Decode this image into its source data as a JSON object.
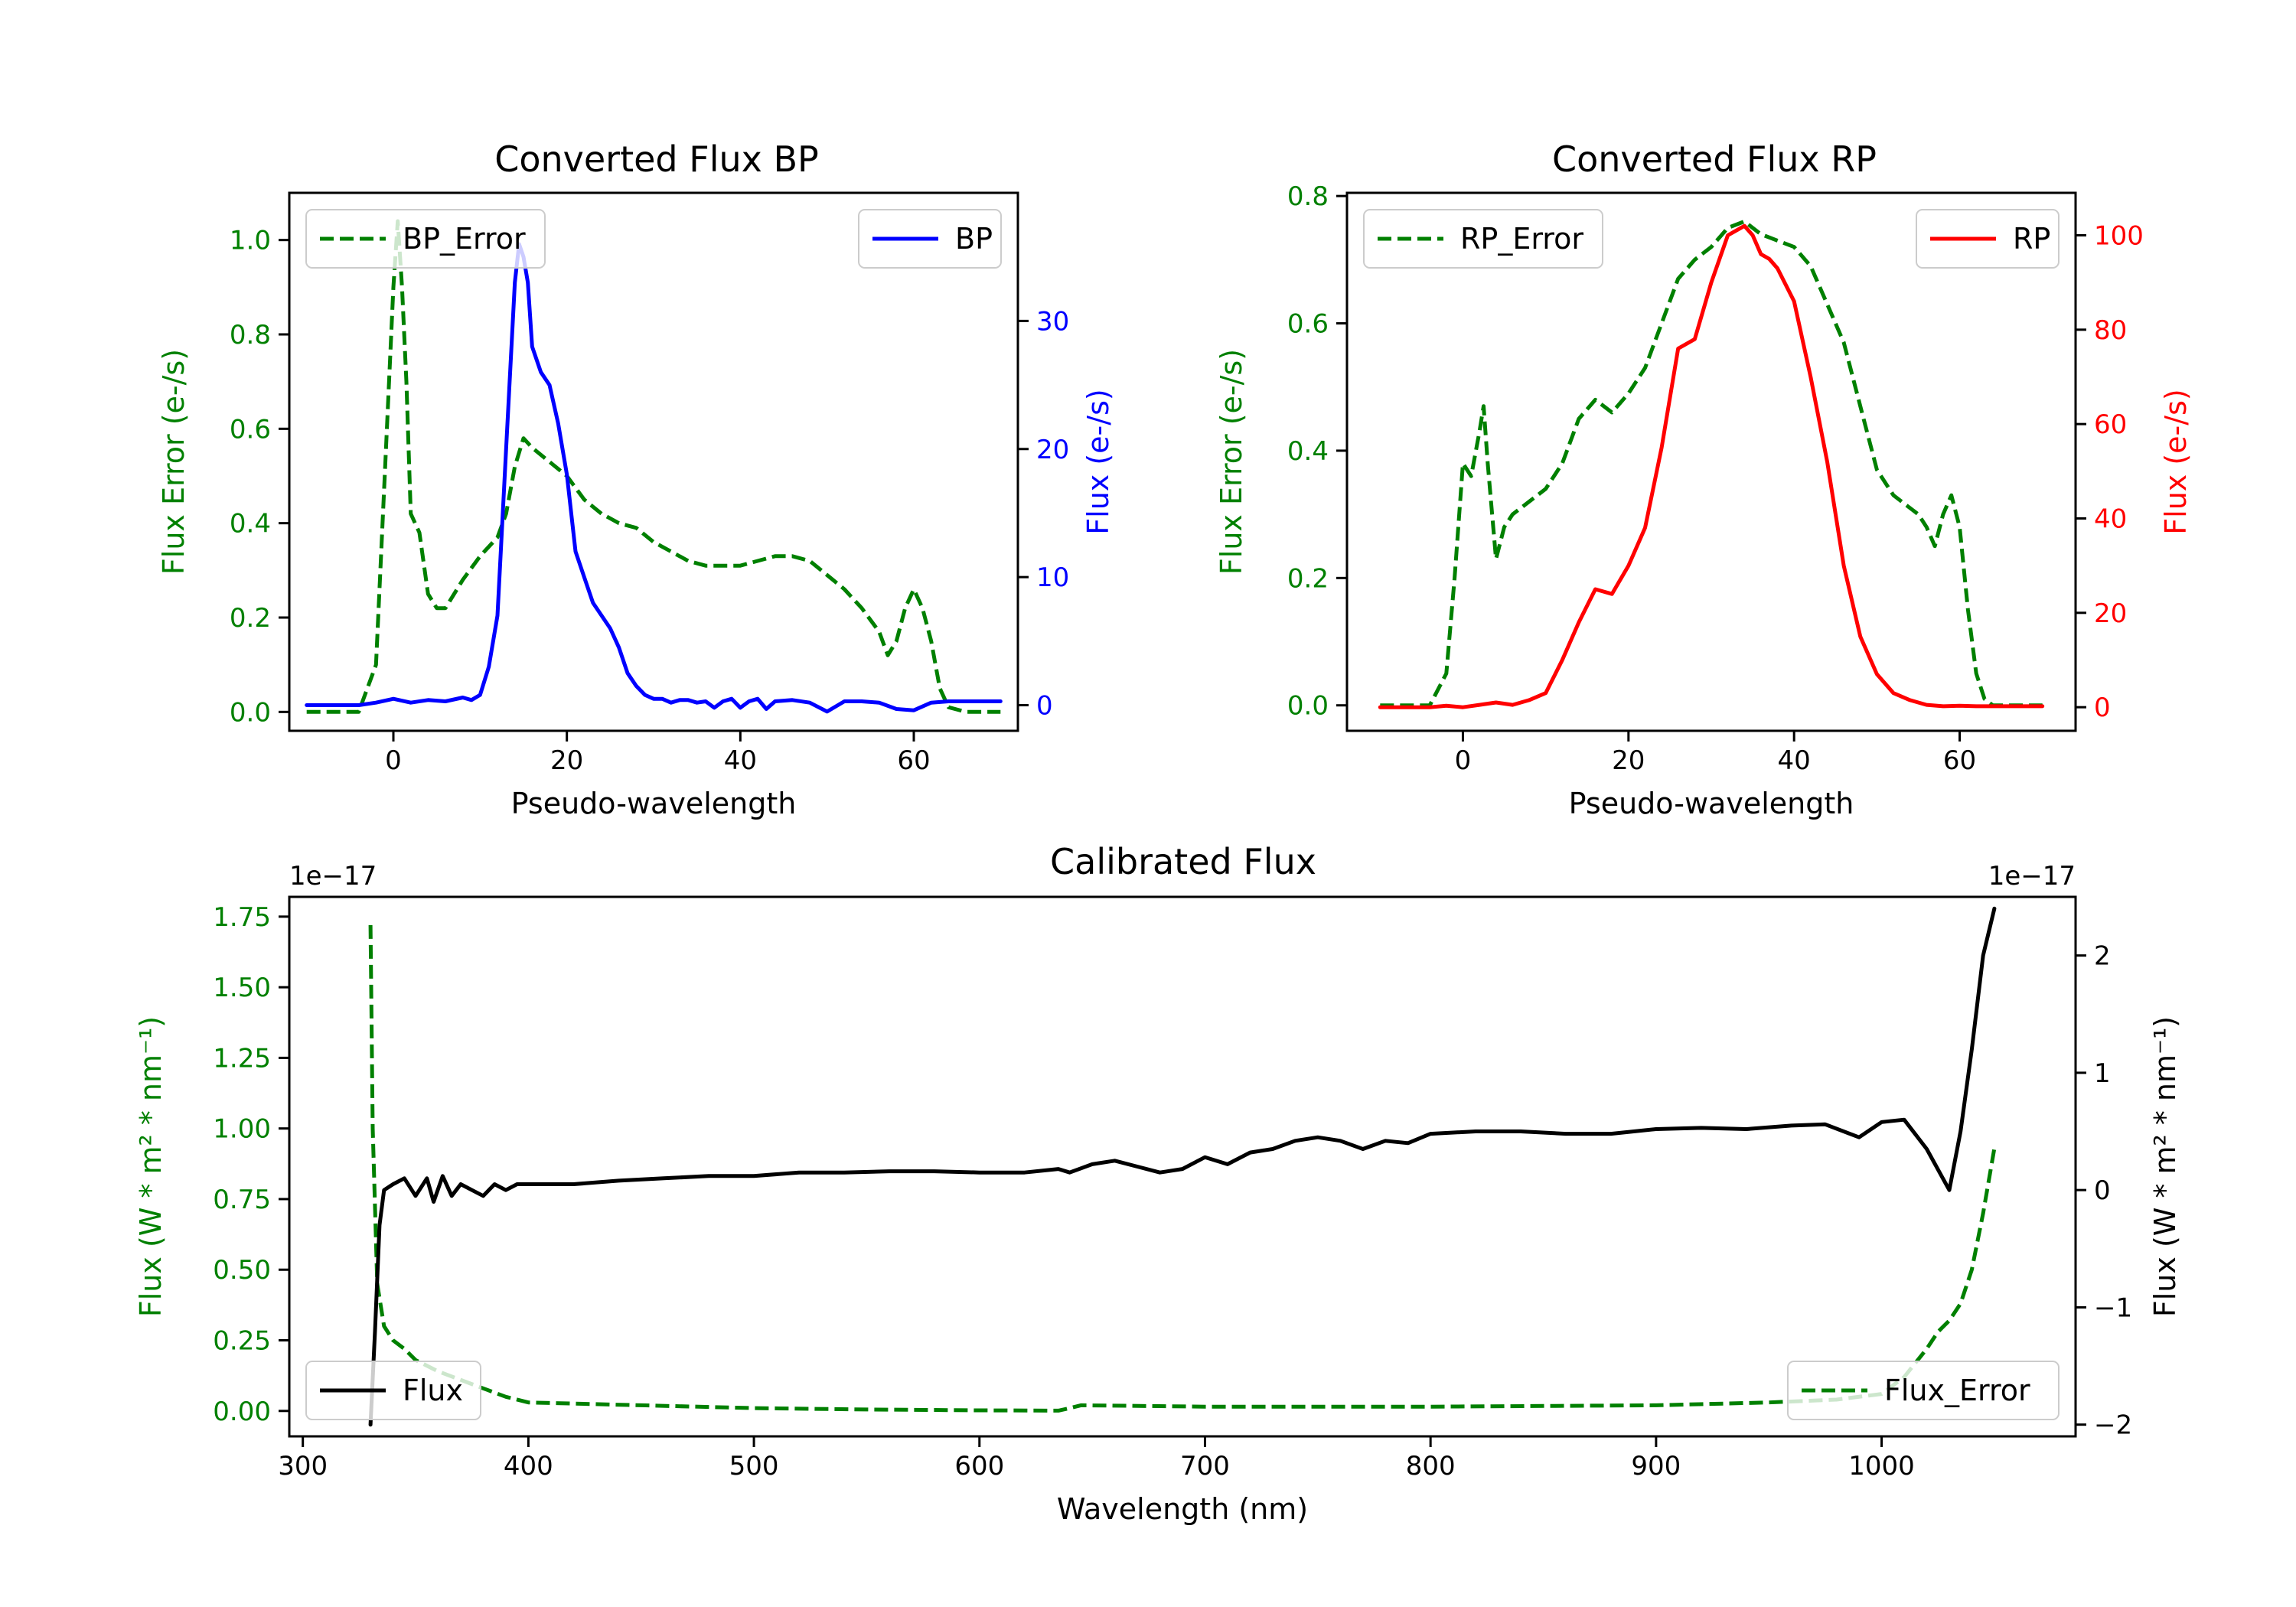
{
  "colors": {
    "error": "#008000",
    "bp": "#0000ff",
    "rp": "#ff0000",
    "flux": "#000000"
  },
  "chart_data": [
    {
      "id": "bp",
      "type": "line",
      "title": "Converted Flux BP",
      "xlabel": "Pseudo-wavelength",
      "ylabel_left": "Flux Error (e-/s)",
      "ylabel_right": "Flux (e-/s)",
      "xlim": [
        -12,
        72
      ],
      "ylim_left": [
        -0.04,
        1.1
      ],
      "ylim_right": [
        -2,
        40
      ],
      "xticks": [
        0,
        20,
        40,
        60
      ],
      "yticks_left": [
        0.0,
        0.2,
        0.4,
        0.6,
        0.8,
        1.0
      ],
      "yticks_right": [
        0,
        10,
        20,
        30
      ],
      "left_tick_labels": [
        "0.0",
        "0.2",
        "0.4",
        "0.6",
        "0.8",
        "1.0"
      ],
      "right_tick_labels": [
        "0",
        "10",
        "20",
        "30"
      ],
      "legend_left": "BP_Error",
      "legend_right": "BP",
      "series": [
        {
          "name": "BP_Error",
          "axis": "left",
          "style": "dashed",
          "color": "#008000",
          "x": [
            -10,
            -4,
            -2,
            -1,
            0,
            0.5,
            1,
            1.5,
            2,
            3,
            4,
            5,
            6,
            8,
            10,
            12,
            13,
            14,
            15,
            16,
            18,
            20,
            22,
            24,
            26,
            28,
            30,
            32,
            34,
            36,
            38,
            40,
            42,
            44,
            46,
            48,
            50,
            52,
            54,
            56,
            57,
            58,
            59,
            60,
            61,
            62,
            63,
            64,
            66,
            68,
            70
          ],
          "values": [
            0.0,
            0.0,
            0.1,
            0.5,
            0.9,
            1.04,
            0.9,
            0.7,
            0.42,
            0.38,
            0.25,
            0.22,
            0.22,
            0.28,
            0.33,
            0.37,
            0.42,
            0.52,
            0.58,
            0.56,
            0.53,
            0.5,
            0.45,
            0.42,
            0.4,
            0.39,
            0.36,
            0.34,
            0.32,
            0.31,
            0.31,
            0.31,
            0.32,
            0.33,
            0.33,
            0.32,
            0.29,
            0.26,
            0.22,
            0.17,
            0.12,
            0.15,
            0.22,
            0.26,
            0.22,
            0.15,
            0.05,
            0.01,
            0.0,
            0.0,
            0.0
          ]
        },
        {
          "name": "BP",
          "axis": "right",
          "style": "solid",
          "color": "#0000ff",
          "x": [
            -10,
            -4,
            -2,
            0,
            2,
            4,
            6,
            8,
            9,
            10,
            11,
            12,
            13,
            14,
            14.5,
            15,
            15.5,
            16,
            17,
            18,
            19,
            20,
            21,
            22,
            23,
            24,
            25,
            26,
            27,
            28,
            29,
            30,
            31,
            32,
            33,
            34,
            35,
            36,
            37,
            38,
            39,
            40,
            41,
            42,
            43,
            44,
            46,
            48,
            50,
            52,
            54,
            56,
            58,
            60,
            62,
            64,
            66,
            68,
            70
          ],
          "values": [
            0,
            0,
            0.2,
            0.5,
            0.2,
            0.4,
            0.3,
            0.6,
            0.4,
            0.8,
            3,
            7,
            20,
            33,
            36,
            35,
            33,
            28,
            26,
            25,
            22,
            18,
            12,
            10,
            8,
            7,
            6,
            4.5,
            2.5,
            1.5,
            0.8,
            0.5,
            0.5,
            0.2,
            0.4,
            0.4,
            0.2,
            0.3,
            -0.2,
            0.3,
            0.5,
            -0.2,
            0.3,
            0.5,
            -0.3,
            0.3,
            0.4,
            0.2,
            -0.5,
            0.3,
            0.3,
            0.2,
            -0.3,
            -0.4,
            0.2,
            0.3,
            0.3,
            0.3,
            0.3
          ]
        }
      ]
    },
    {
      "id": "rp",
      "type": "line",
      "title": "Converted Flux RP",
      "xlabel": "Pseudo-wavelength",
      "ylabel_left": "Flux Error (e-/s)",
      "ylabel_right": "Flux (e-/s)",
      "xlim": [
        -14,
        74
      ],
      "ylim_left": [
        -0.04,
        0.805
      ],
      "ylim_right": [
        -5,
        109
      ],
      "xticks": [
        0,
        20,
        40,
        60
      ],
      "yticks_left": [
        0.0,
        0.2,
        0.4,
        0.6,
        0.8
      ],
      "yticks_right": [
        0,
        20,
        40,
        60,
        80,
        100
      ],
      "left_tick_labels": [
        "0.0",
        "0.2",
        "0.4",
        "0.6",
        "0.8"
      ],
      "right_tick_labels": [
        "0",
        "20",
        "40",
        "60",
        "80",
        "100"
      ],
      "legend_left": "RP_Error",
      "legend_right": "RP",
      "series": [
        {
          "name": "RP_Error",
          "axis": "left",
          "style": "dashed",
          "color": "#008000",
          "x": [
            -10,
            -4,
            -2,
            -1,
            0,
            1,
            2,
            2.5,
            3,
            4,
            5,
            6,
            8,
            10,
            12,
            14,
            16,
            18,
            20,
            22,
            24,
            26,
            28,
            30,
            32,
            34,
            36,
            38,
            40,
            42,
            44,
            46,
            48,
            50,
            52,
            54,
            55,
            56,
            57,
            58,
            59,
            60,
            61,
            62,
            63,
            64,
            66,
            68,
            70
          ],
          "values": [
            0.0,
            0.0,
            0.05,
            0.2,
            0.38,
            0.36,
            0.43,
            0.47,
            0.38,
            0.23,
            0.28,
            0.3,
            0.32,
            0.34,
            0.38,
            0.45,
            0.48,
            0.46,
            0.49,
            0.53,
            0.6,
            0.67,
            0.7,
            0.72,
            0.75,
            0.76,
            0.74,
            0.73,
            0.72,
            0.69,
            0.63,
            0.57,
            0.47,
            0.37,
            0.33,
            0.31,
            0.3,
            0.28,
            0.25,
            0.3,
            0.33,
            0.28,
            0.15,
            0.05,
            0.01,
            0.0,
            0.0,
            0.0,
            0.0
          ]
        },
        {
          "name": "RP",
          "axis": "right",
          "style": "solid",
          "color": "#ff0000",
          "x": [
            -10,
            -4,
            -2,
            0,
            2,
            4,
            6,
            8,
            10,
            12,
            14,
            16,
            18,
            20,
            22,
            24,
            26,
            28,
            30,
            32,
            33,
            34,
            35,
            36,
            37,
            38,
            40,
            42,
            44,
            46,
            48,
            50,
            52,
            54,
            56,
            58,
            60,
            62,
            64,
            66,
            68,
            70
          ],
          "values": [
            0,
            0,
            0.3,
            0,
            0.5,
            1,
            0.5,
            1.5,
            3,
            10,
            18,
            25,
            24,
            30,
            38,
            55,
            76,
            78,
            90,
            100,
            101,
            102,
            100,
            96,
            95,
            93,
            86,
            70,
            52,
            30,
            15,
            7,
            3,
            1.5,
            0.5,
            0.2,
            0.3,
            0.2,
            0.2,
            0.2,
            0.2,
            0.2
          ]
        }
      ]
    },
    {
      "id": "calibrated",
      "type": "line",
      "title": "Calibrated Flux",
      "xlabel": "Wavelength (nm)",
      "ylabel_left": "Flux (W * m² * nm⁻¹)",
      "ylabel_right": "Flux (W * m² * nm⁻¹)",
      "offset_left": "1e−17",
      "offset_right": "1e−17",
      "xlim": [
        294,
        1086
      ],
      "ylim_left": [
        -0.09,
        1.82
      ],
      "ylim_right": [
        -2.1,
        2.5
      ],
      "xticks": [
        300,
        400,
        500,
        600,
        700,
        800,
        900,
        1000
      ],
      "yticks_left": [
        0.0,
        0.25,
        0.5,
        0.75,
        1.0,
        1.25,
        1.5,
        1.75
      ],
      "yticks_right": [
        -2,
        -1,
        0,
        1,
        2
      ],
      "left_tick_labels": [
        "0.00",
        "0.25",
        "0.50",
        "0.75",
        "1.00",
        "1.25",
        "1.50",
        "1.75"
      ],
      "right_tick_labels": [
        "−2",
        "−1",
        "0",
        "1",
        "2"
      ],
      "legend_left": "Flux",
      "legend_right": "Flux_Error",
      "series": [
        {
          "name": "Flux_Error",
          "axis": "left",
          "style": "dashed",
          "color": "#008000",
          "x": [
            330,
            331,
            333,
            336,
            340,
            345,
            350,
            360,
            370,
            380,
            390,
            400,
            450,
            500,
            550,
            600,
            635,
            640,
            645,
            700,
            800,
            900,
            950,
            980,
            1000,
            1010,
            1020,
            1025,
            1030,
            1035,
            1040,
            1045,
            1050
          ],
          "values": [
            1.72,
            1.0,
            0.45,
            0.3,
            0.25,
            0.22,
            0.18,
            0.14,
            0.11,
            0.08,
            0.05,
            0.03,
            0.02,
            0.01,
            0.005,
            0.002,
            0.001,
            0.01,
            0.02,
            0.015,
            0.015,
            0.02,
            0.03,
            0.04,
            0.06,
            0.12,
            0.22,
            0.28,
            0.32,
            0.38,
            0.5,
            0.7,
            0.93
          ]
        },
        {
          "name": "Flux",
          "axis": "right",
          "style": "solid",
          "color": "#000000",
          "x": [
            330,
            332,
            334,
            336,
            340,
            345,
            350,
            355,
            358,
            362,
            366,
            370,
            375,
            380,
            385,
            390,
            395,
            400,
            420,
            440,
            460,
            480,
            500,
            520,
            540,
            560,
            580,
            600,
            620,
            635,
            640,
            650,
            660,
            670,
            680,
            690,
            700,
            710,
            720,
            730,
            740,
            750,
            760,
            770,
            780,
            790,
            800,
            820,
            840,
            860,
            880,
            900,
            920,
            940,
            960,
            975,
            990,
            1000,
            1010,
            1020,
            1030,
            1035,
            1040,
            1045,
            1050
          ],
          "values": [
            -2.0,
            -1.2,
            -0.3,
            0.0,
            0.05,
            0.1,
            -0.05,
            0.1,
            -0.1,
            0.12,
            -0.05,
            0.05,
            0.0,
            -0.05,
            0.05,
            0.0,
            0.05,
            0.05,
            0.05,
            0.08,
            0.1,
            0.12,
            0.12,
            0.15,
            0.15,
            0.16,
            0.16,
            0.15,
            0.15,
            0.18,
            0.15,
            0.22,
            0.25,
            0.2,
            0.15,
            0.18,
            0.28,
            0.22,
            0.32,
            0.35,
            0.42,
            0.45,
            0.42,
            0.35,
            0.42,
            0.4,
            0.48,
            0.5,
            0.5,
            0.48,
            0.48,
            0.52,
            0.53,
            0.52,
            0.55,
            0.56,
            0.45,
            0.58,
            0.6,
            0.35,
            0.0,
            0.5,
            1.2,
            2.0,
            2.4
          ]
        }
      ]
    }
  ]
}
